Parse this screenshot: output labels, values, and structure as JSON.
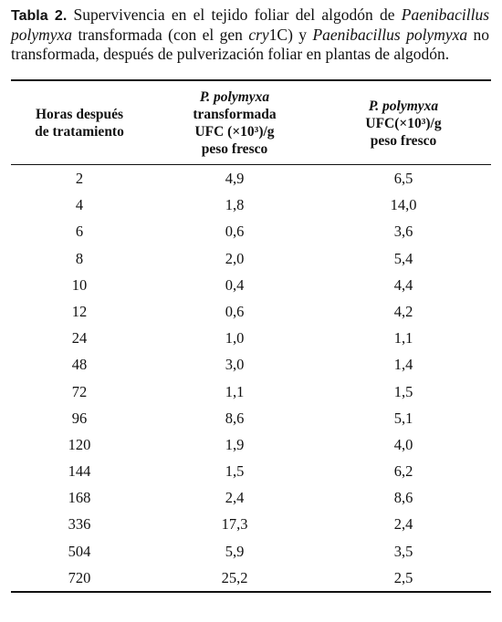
{
  "caption": {
    "label": "Tabla 2.",
    "parts": [
      " Supervivencia en el tejido foliar del algodón de ",
      "Paenibacillus polymyxa",
      " transformada (con el gen ",
      "cry",
      "1C) y ",
      "Paenibacillus polymyxa",
      " no transformada, después de pulverización foliar en plantas de algodón."
    ]
  },
  "table": {
    "header": [
      [
        "Horas después",
        "de tratamiento"
      ],
      [
        "P. polymyxa",
        "transformada",
        "UFC (×10³)/g",
        "peso fresco"
      ],
      [
        "P. polymyxa",
        "UFC(×10³)/g",
        "peso fresco"
      ]
    ],
    "rows": [
      [
        2,
        "4,9",
        "6,5"
      ],
      [
        4,
        "1,8",
        "14,0"
      ],
      [
        6,
        "0,6",
        "3,6"
      ],
      [
        8,
        "2,0",
        "5,4"
      ],
      [
        10,
        "0,4",
        "4,4"
      ],
      [
        12,
        "0,6",
        "4,2"
      ],
      [
        24,
        "1,0",
        "1,1"
      ],
      [
        48,
        "3,0",
        "1,4"
      ],
      [
        72,
        "1,1",
        "1,5"
      ],
      [
        96,
        "8,6",
        "5,1"
      ],
      [
        120,
        "1,9",
        "4,0"
      ],
      [
        144,
        "1,5",
        "6,2"
      ],
      [
        168,
        "2,4",
        "8,6"
      ],
      [
        336,
        "17,3",
        "2,4"
      ],
      [
        504,
        "5,9",
        "3,5"
      ],
      [
        720,
        "25,2",
        "2,5"
      ]
    ]
  }
}
